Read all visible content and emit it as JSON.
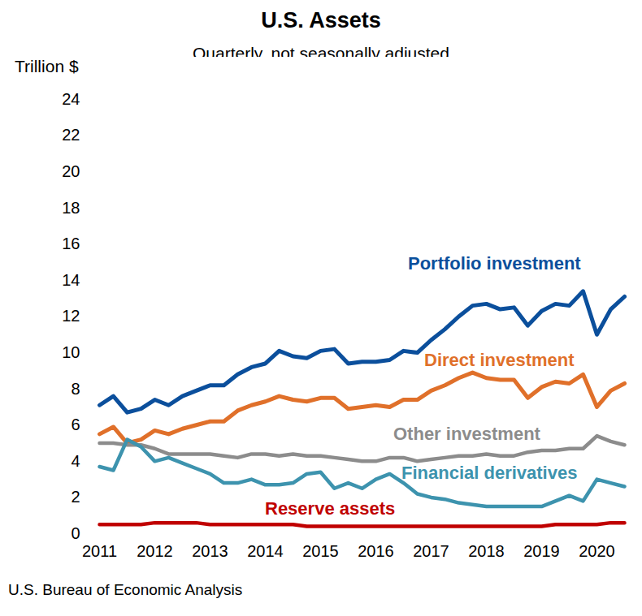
{
  "chart_data": {
    "type": "line",
    "title": "U.S. Assets",
    "subtitle": "Quarterly, not seasonally adjusted",
    "y_label": "Trillion $",
    "source": "U.S. Bureau of Economic Analysis",
    "categories": [
      "2011",
      null,
      null,
      null,
      "2012",
      null,
      null,
      null,
      "2013",
      null,
      null,
      null,
      "2014",
      null,
      null,
      null,
      "2015",
      null,
      null,
      null,
      "2016",
      null,
      null,
      null,
      "2017",
      null,
      null,
      null,
      "2018",
      null,
      null,
      null,
      "2019",
      null,
      null,
      null,
      "2020",
      null,
      null
    ],
    "series": [
      {
        "name": "Portfolio investment",
        "color": "#0b4f9c",
        "values": [
          7.1,
          7.6,
          6.7,
          6.9,
          7.4,
          7.1,
          7.6,
          7.9,
          8.2,
          8.2,
          8.8,
          9.2,
          9.4,
          10.1,
          9.8,
          9.7,
          10.1,
          10.2,
          9.4,
          9.5,
          9.5,
          9.6,
          10.1,
          10.0,
          10.7,
          11.3,
          12.0,
          12.6,
          12.7,
          12.4,
          12.5,
          11.5,
          12.3,
          12.7,
          12.6,
          13.4,
          11.0,
          12.4,
          13.1
        ]
      },
      {
        "name": "Direct investment",
        "color": "#e0702a",
        "values": [
          5.5,
          5.9,
          5.0,
          5.2,
          5.7,
          5.5,
          5.8,
          6.0,
          6.2,
          6.2,
          6.8,
          7.1,
          7.3,
          7.6,
          7.4,
          7.3,
          7.5,
          7.5,
          6.9,
          7.0,
          7.1,
          7.0,
          7.4,
          7.4,
          7.9,
          8.2,
          8.6,
          8.9,
          8.6,
          8.5,
          8.5,
          7.5,
          8.1,
          8.4,
          8.3,
          8.8,
          7.0,
          7.9,
          8.3
        ]
      },
      {
        "name": "Other investment",
        "color": "#8c8c8c",
        "values": [
          5.0,
          5.0,
          4.9,
          4.9,
          4.7,
          4.4,
          4.4,
          4.4,
          4.4,
          4.3,
          4.2,
          4.4,
          4.4,
          4.3,
          4.4,
          4.3,
          4.3,
          4.2,
          4.1,
          4.0,
          4.0,
          4.2,
          4.2,
          4.0,
          4.1,
          4.2,
          4.3,
          4.3,
          4.4,
          4.3,
          4.3,
          4.5,
          4.6,
          4.6,
          4.7,
          4.7,
          5.4,
          5.1,
          4.9
        ]
      },
      {
        "name": "Financial derivatives",
        "color": "#3d93ae",
        "values": [
          3.7,
          3.5,
          5.2,
          4.8,
          4.0,
          4.2,
          3.9,
          3.6,
          3.3,
          2.8,
          2.8,
          3.0,
          2.7,
          2.7,
          2.8,
          3.3,
          3.4,
          2.5,
          2.8,
          2.5,
          3.0,
          3.3,
          2.8,
          2.2,
          2.0,
          1.9,
          1.7,
          1.6,
          1.5,
          1.5,
          1.5,
          1.5,
          1.5,
          1.8,
          2.1,
          1.8,
          3.0,
          2.8,
          2.6
        ]
      },
      {
        "name": "Reserve assets",
        "color": "#c00000",
        "values": [
          0.5,
          0.5,
          0.5,
          0.5,
          0.6,
          0.6,
          0.6,
          0.6,
          0.5,
          0.5,
          0.5,
          0.5,
          0.5,
          0.5,
          0.5,
          0.4,
          0.4,
          0.4,
          0.4,
          0.4,
          0.4,
          0.4,
          0.4,
          0.4,
          0.4,
          0.4,
          0.4,
          0.4,
          0.4,
          0.4,
          0.4,
          0.4,
          0.4,
          0.5,
          0.5,
          0.5,
          0.5,
          0.6,
          0.6
        ]
      }
    ],
    "ylim": [
      0,
      24
    ],
    "yticks": [
      0,
      2,
      4,
      6,
      8,
      10,
      12,
      14,
      16,
      18,
      20,
      22,
      24
    ],
    "grid": false
  }
}
